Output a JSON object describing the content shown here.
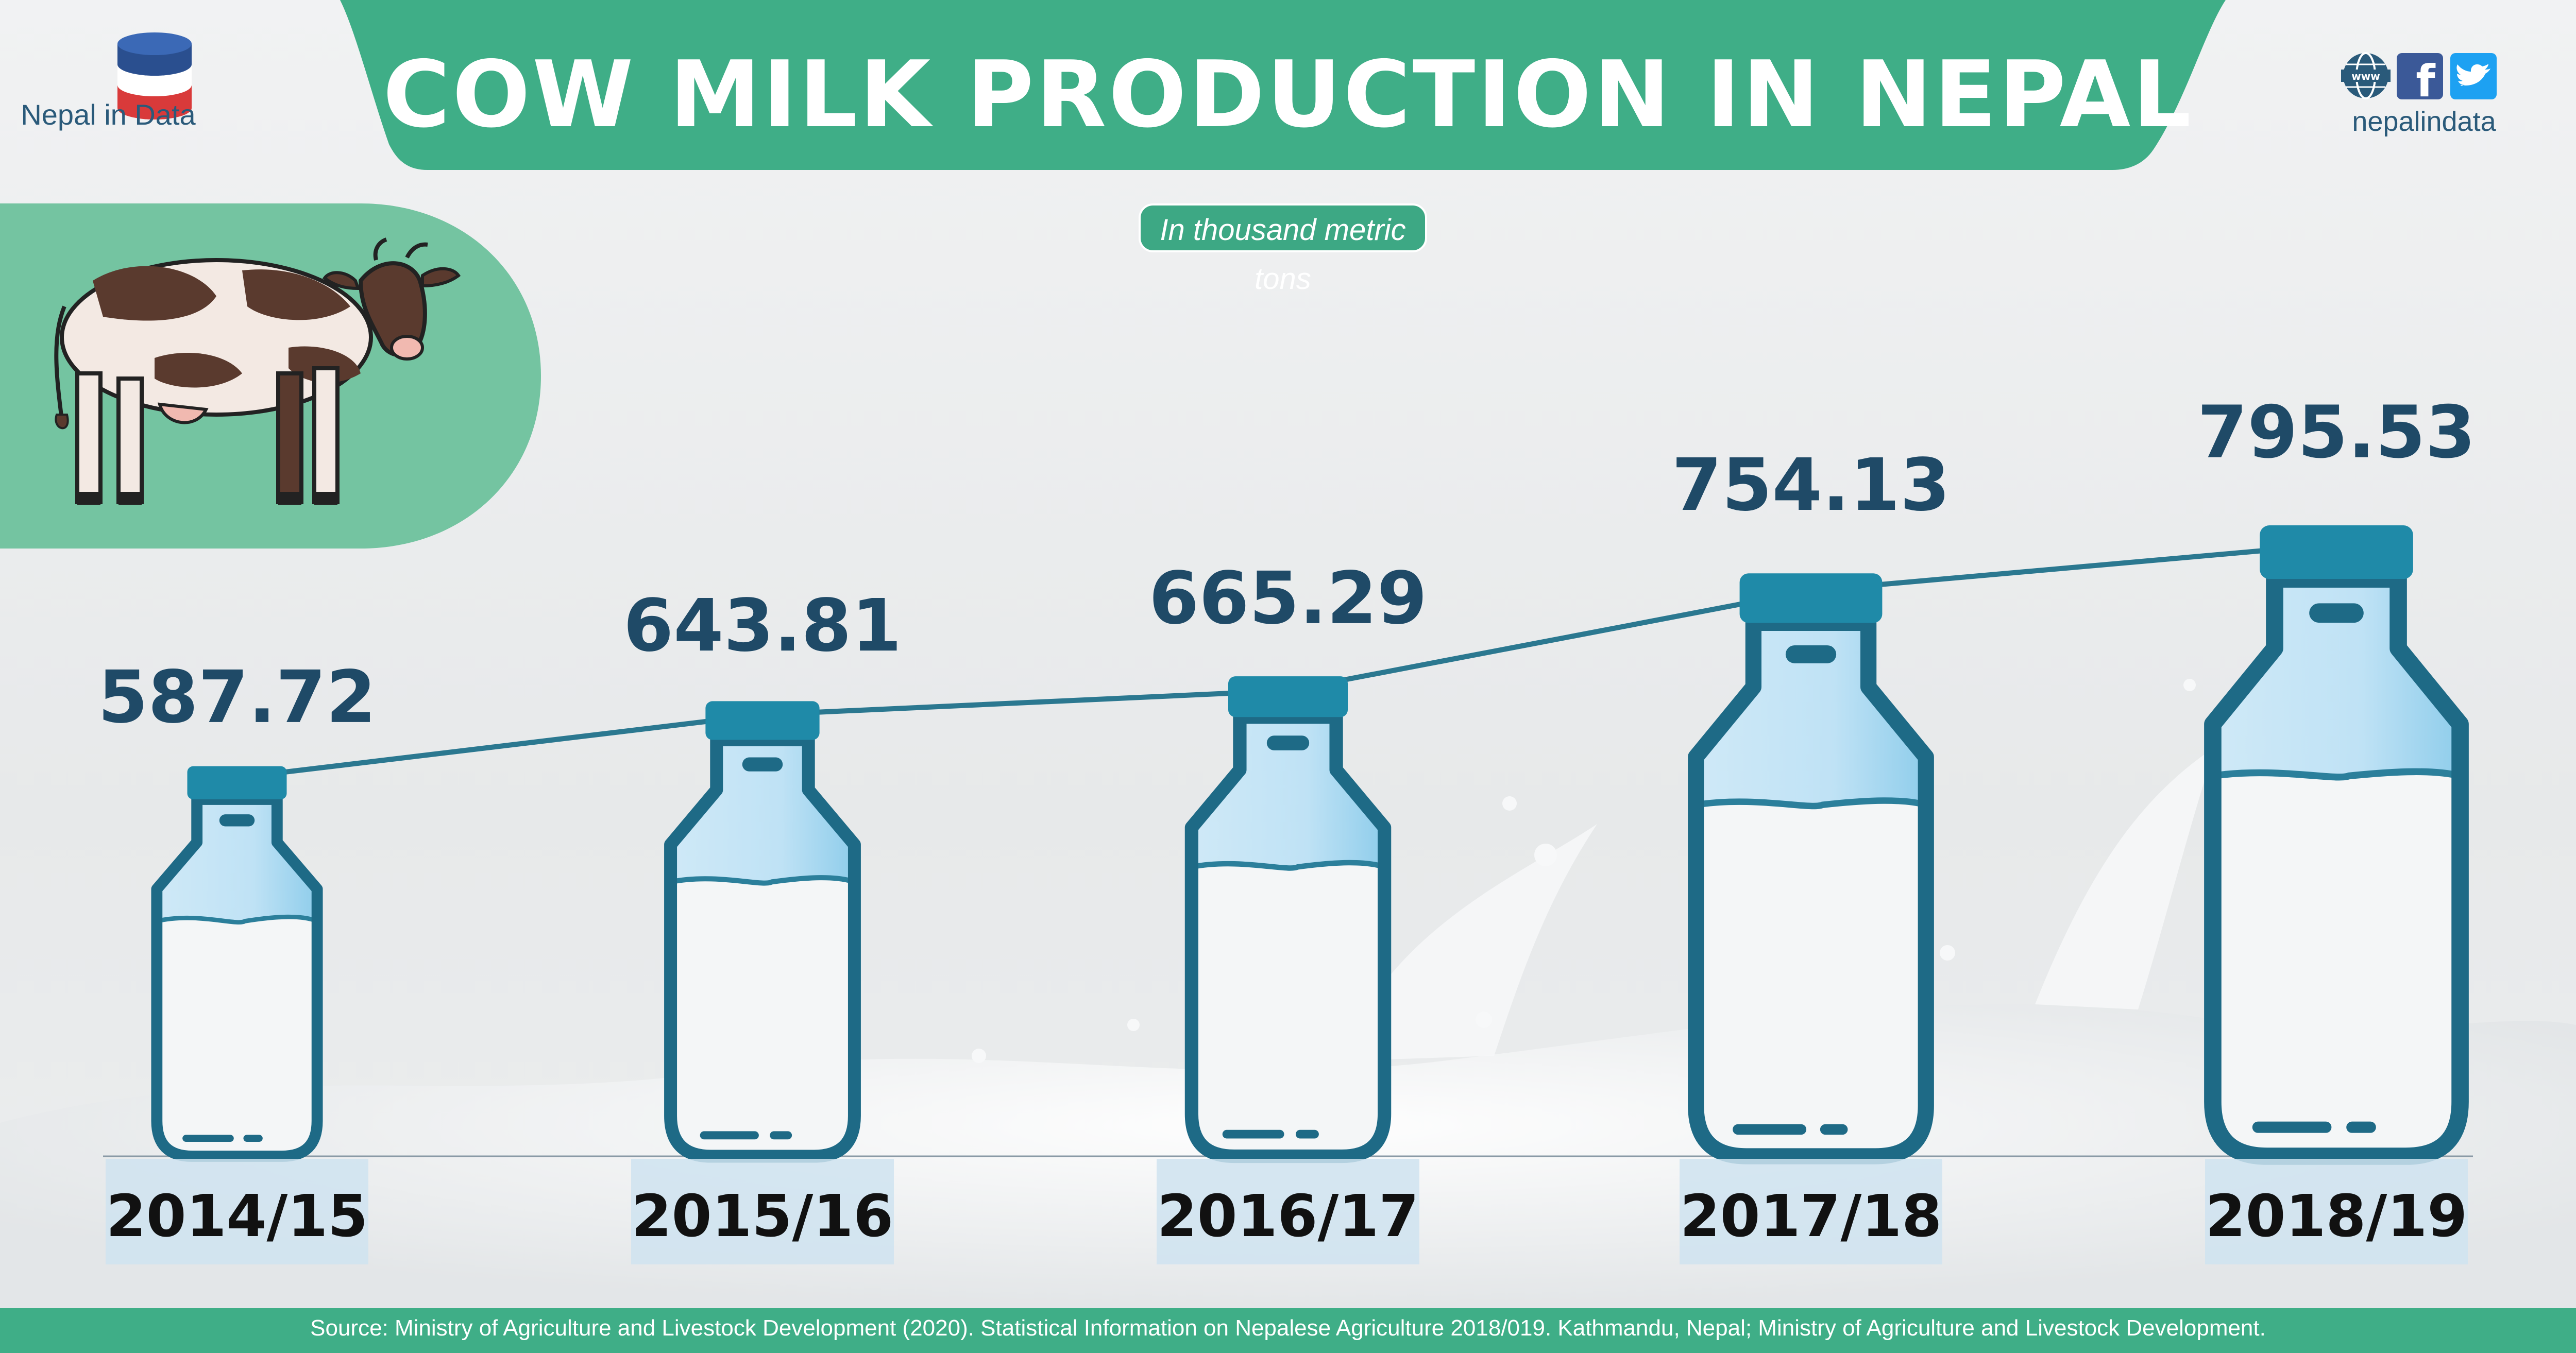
{
  "header": {
    "brand": "Nepal in Data",
    "title": "COW MILK PRODUCTION IN NEPAL",
    "social_handle": "nepalindata"
  },
  "colors": {
    "accent": "#3fae87",
    "accent_dark": "#2e9f78",
    "bottle_outline": "#1e6a86",
    "bottle_cap": "#1f8aa8",
    "line": "#2b7890",
    "value_text": "#1f4a67"
  },
  "icons": [
    "milk-stack-logo-icon",
    "www-icon",
    "facebook-icon",
    "twitter-icon",
    "cow-illustration"
  ],
  "chart_data": {
    "type": "line",
    "title": "COW MILK PRODUCTION IN NEPAL",
    "subtitle": "In thousand metric tons",
    "categories": [
      "2014/15",
      "2015/16",
      "2016/17",
      "2017/18",
      "2018/19"
    ],
    "values": [
      587.72,
      643.81,
      665.29,
      754.13,
      795.53
    ],
    "value_labels": [
      "587.72",
      "643.81",
      "665.29",
      "754.13",
      "795.53"
    ],
    "ylim": [
      500,
      820
    ],
    "grid": false,
    "marks": "milk-bottle pictograms joined by a trend line"
  },
  "footer": {
    "source": "Source: Ministry of Agriculture and Livestock Development (2020). Statistical Information on Nepalese Agriculture 2018/019. Kathmandu, Nepal; Ministry of Agriculture and Livestock Development."
  }
}
